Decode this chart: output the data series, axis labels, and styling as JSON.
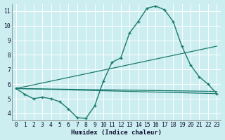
{
  "xlabel": "Humidex (Indice chaleur)",
  "bg_color": "#cceef0",
  "grid_color": "#ffffff",
  "line_color": "#1a7a6e",
  "xlim": [
    -0.5,
    23.5
  ],
  "ylim": [
    3.5,
    11.5
  ],
  "xticks": [
    0,
    1,
    2,
    3,
    4,
    5,
    6,
    7,
    8,
    9,
    10,
    11,
    12,
    13,
    14,
    15,
    16,
    17,
    18,
    19,
    20,
    21,
    22,
    23
  ],
  "yticks": [
    4,
    5,
    6,
    7,
    8,
    9,
    10,
    11
  ],
  "curve_main_x": [
    0,
    1,
    2,
    3,
    4,
    5,
    6,
    7,
    8,
    9,
    10,
    11,
    12,
    13,
    14,
    15,
    16,
    17,
    18,
    19,
    20,
    21,
    22,
    23
  ],
  "curve_main_y": [
    5.7,
    5.3,
    5.0,
    5.1,
    5.0,
    4.8,
    4.3,
    3.7,
    3.65,
    4.5,
    6.2,
    7.5,
    7.8,
    9.5,
    10.3,
    11.2,
    11.35,
    11.1,
    10.3,
    8.6,
    7.3,
    6.5,
    6.0,
    5.35
  ],
  "line1_x": [
    0,
    23
  ],
  "line1_y": [
    5.7,
    5.35
  ],
  "line2_x": [
    0,
    23
  ],
  "line2_y": [
    5.7,
    5.5
  ],
  "line3_x": [
    0,
    23
  ],
  "line3_y": [
    5.7,
    8.6
  ]
}
